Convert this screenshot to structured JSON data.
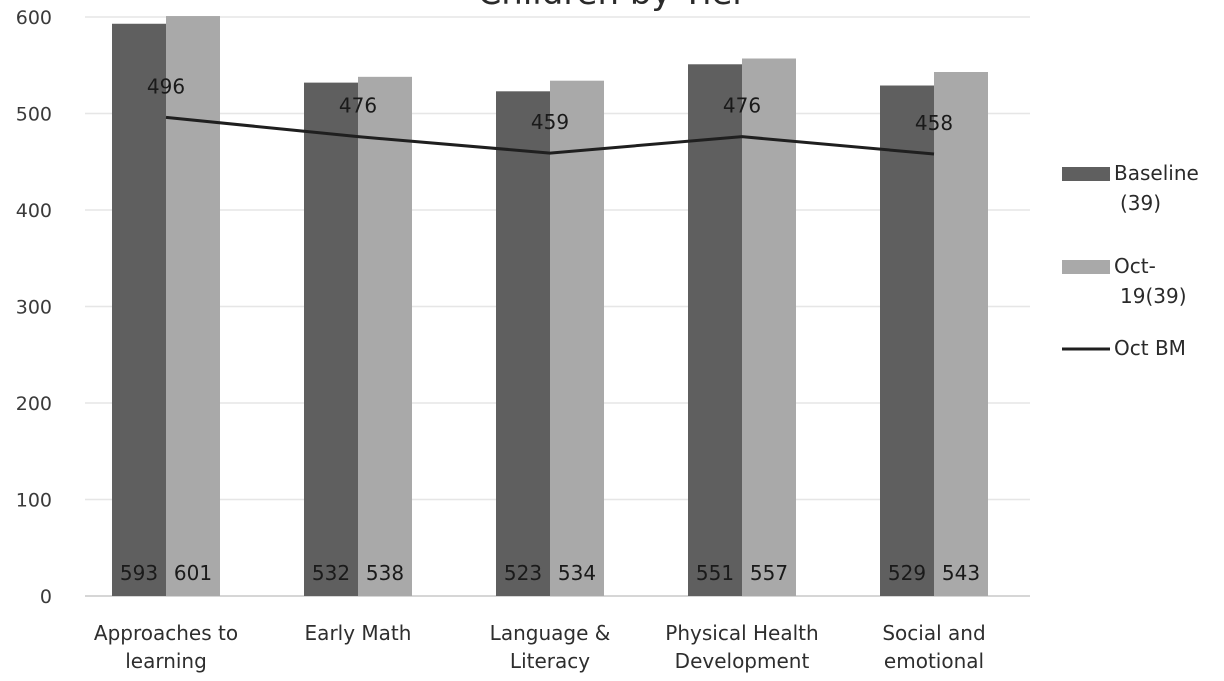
{
  "chart_data": {
    "type": "bar",
    "title": "Children by Tier",
    "categories": [
      [
        "Approaches to",
        "learning"
      ],
      [
        "Early Math"
      ],
      [
        "Language &",
        "Literacy"
      ],
      [
        "Physical Health",
        "Development"
      ],
      [
        "Social and",
        "emotional"
      ]
    ],
    "series": [
      {
        "name": [
          "Baseline",
          "(39)"
        ],
        "type": "bar",
        "color": "#5f5f5f",
        "values": [
          593,
          532,
          523,
          551,
          529
        ]
      },
      {
        "name": [
          "Oct-",
          "19(39)"
        ],
        "type": "bar",
        "color": "#a9a9a9",
        "values": [
          601,
          538,
          534,
          557,
          543
        ]
      },
      {
        "name": [
          "Oct  BM"
        ],
        "type": "line",
        "color": "#1f1f1f",
        "values": [
          496,
          476,
          459,
          476,
          458
        ]
      }
    ],
    "ylim": [
      0,
      600
    ],
    "yticks": [
      0,
      100,
      200,
      300,
      400,
      500,
      600
    ],
    "grid": true,
    "legend": "right"
  }
}
